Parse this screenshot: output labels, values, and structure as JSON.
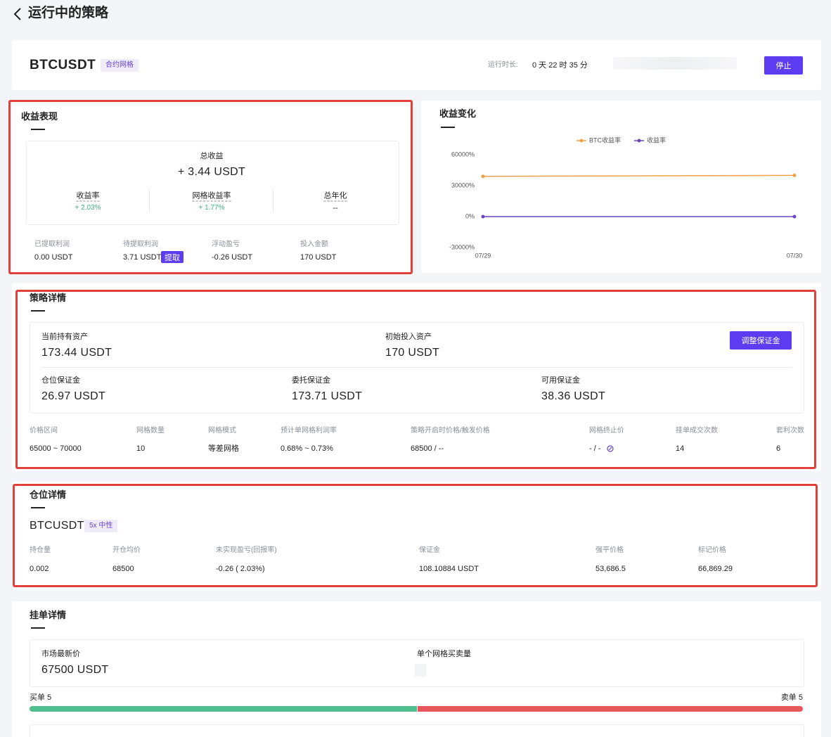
{
  "header": {
    "title": "运行中的策略"
  },
  "summary": {
    "symbol": "BTCUSDT",
    "tag": "合约网格",
    "runtime_label": "运行时长:",
    "runtime": "0 天 22 时 35 分",
    "stop_button": "停止"
  },
  "profit": {
    "title": "收益表现",
    "total_label": "总收益",
    "total": "+ 3.44 USDT",
    "metrics": [
      {
        "label": "收益率",
        "value": "+ 2.03%"
      },
      {
        "label": "网格收益率",
        "value": "+ 1.77%"
      },
      {
        "label": "总年化",
        "value": "--"
      }
    ],
    "amounts": [
      {
        "label": "已提取利润",
        "value": "0.00 USDT"
      },
      {
        "label": "待提取利润",
        "value": "3.71 USDT"
      },
      {
        "label": "浮动盈亏",
        "value": "-0.26 USDT"
      },
      {
        "label": "投入金额",
        "value": "170 USDT"
      }
    ],
    "withdraw_button": "提取"
  },
  "chart_data": {
    "type": "line",
    "title": "收益变化",
    "categories": [
      "07/29",
      "07/30"
    ],
    "series": [
      {
        "name": "BTC收益率",
        "color": "#f0a048",
        "values": [
          39000,
          40000
        ]
      },
      {
        "name": "收益率",
        "color": "#6a45c8",
        "values": [
          0,
          0
        ]
      }
    ],
    "ylim": [
      -30000,
      60000
    ],
    "yticks": [
      {
        "value": -30000,
        "label": "-30000%"
      },
      {
        "value": 0,
        "label": "0%"
      },
      {
        "value": 30000,
        "label": "30000%"
      },
      {
        "value": 60000,
        "label": "60000%"
      }
    ],
    "grid": false
  },
  "strategy": {
    "title": "策略详情",
    "assets": [
      {
        "label": "当前持有资产",
        "value": "173.44 USDT"
      },
      {
        "label": "初始投入资产",
        "value": "170 USDT"
      }
    ],
    "adjust_button": "调整保证金",
    "margins": [
      {
        "label": "仓位保证金",
        "value": "26.97 USDT"
      },
      {
        "label": "委托保证金",
        "value": "173.71 USDT"
      },
      {
        "label": "可用保证金",
        "value": "38.36 USDT"
      }
    ],
    "params": [
      {
        "label": "价格区间",
        "value": "65000 ~ 70000"
      },
      {
        "label": "网格数量",
        "value": "10"
      },
      {
        "label": "网格模式",
        "value": "等差网格"
      },
      {
        "label": "预计单网格利润率",
        "value": "0.68% ~ 0.73%"
      },
      {
        "label": "策略开启时价格/触发价格",
        "value": "68500 / --"
      },
      {
        "label": "网格终止价",
        "value": "- / -"
      },
      {
        "label": "挂单成交次数",
        "value": "14"
      },
      {
        "label": "套利次数",
        "value": "6"
      }
    ]
  },
  "position": {
    "title": "仓位详情",
    "symbol": "BTCUSDT",
    "tag": "5x 中性",
    "fields": [
      {
        "label": "持仓量",
        "value": "0.002"
      },
      {
        "label": "开仓均价",
        "value": "68500"
      },
      {
        "label": "未实现盈亏(回报率)",
        "value": "-0.26 ( 2.03%)"
      },
      {
        "label": "保证金",
        "value": "108.10884 USDT"
      },
      {
        "label": "强平价格",
        "value": "53,686.5"
      },
      {
        "label": "标记价格",
        "value": "66,869.29"
      }
    ]
  },
  "orders": {
    "title": "挂单详情",
    "fields": [
      {
        "label": "市场最新价",
        "value": "67500 USDT"
      },
      {
        "label": "单个网格买卖量"
      }
    ],
    "buy": "买单 5",
    "sell": "卖单 5"
  }
}
